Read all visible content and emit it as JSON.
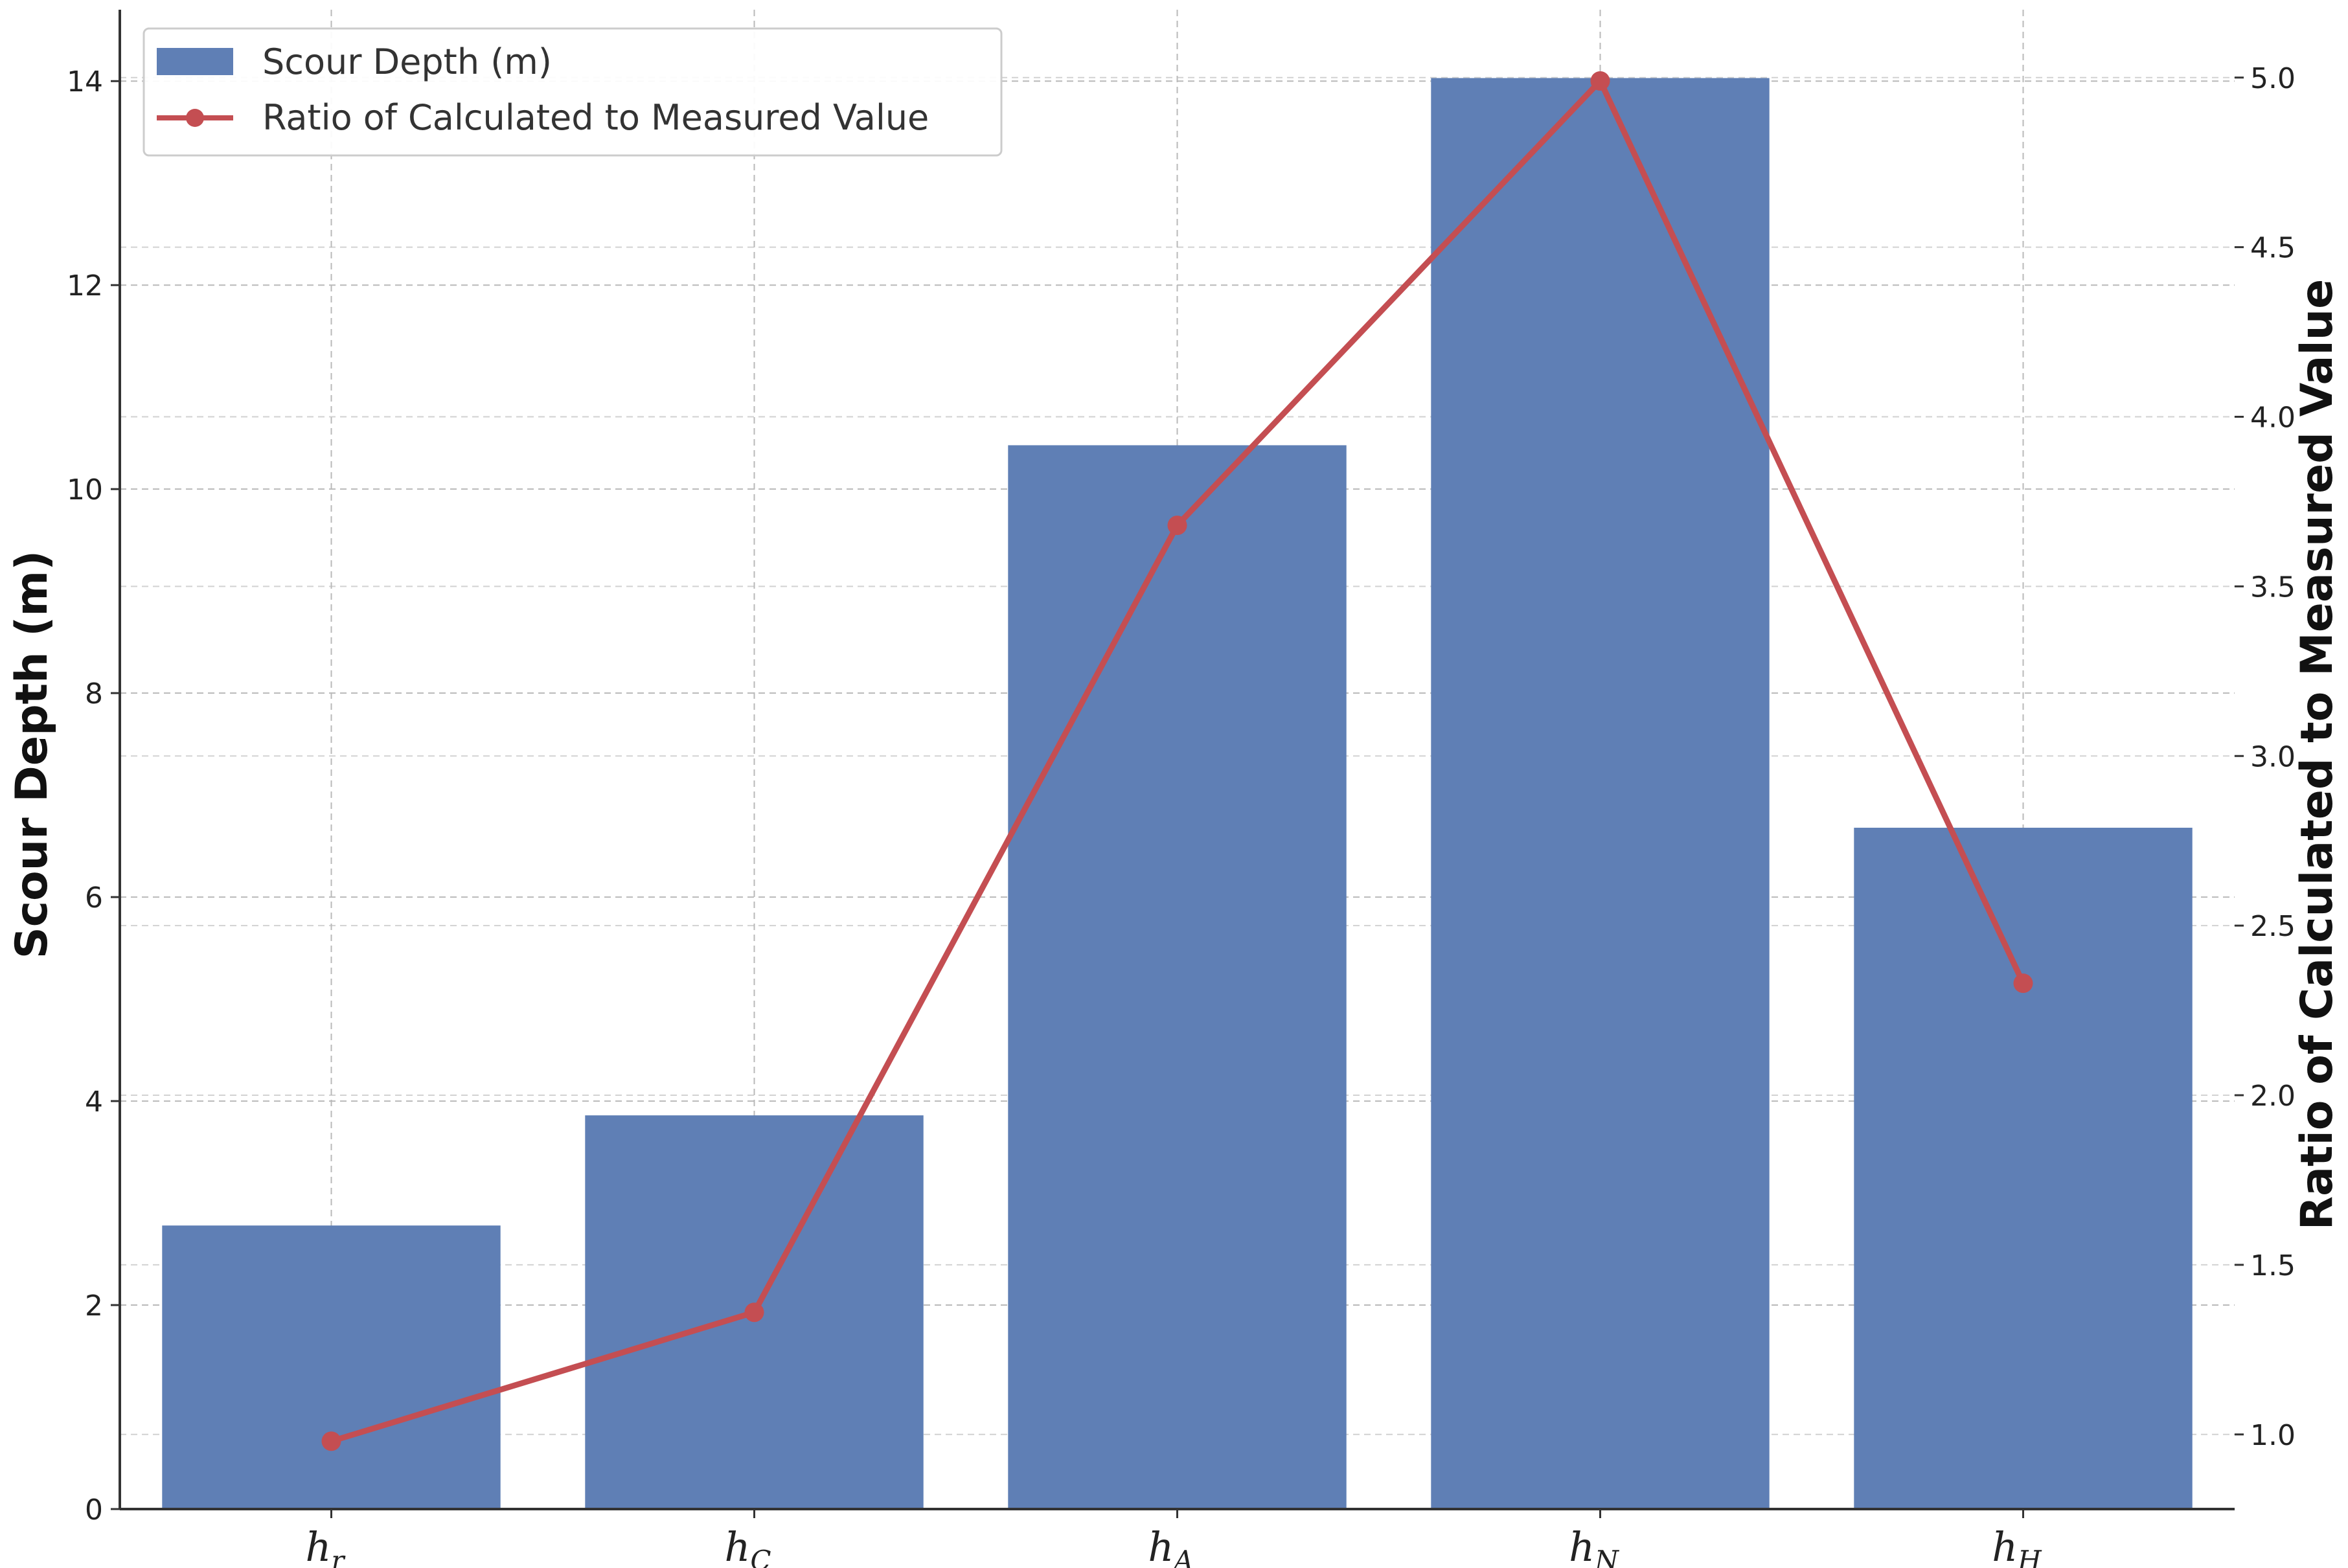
{
  "chart_data": {
    "type": "bar",
    "categories": [
      {
        "base": "h",
        "sub": "r"
      },
      {
        "base": "h",
        "sub": "C"
      },
      {
        "base": "h",
        "sub": "A"
      },
      {
        "base": "h",
        "sub": "N"
      },
      {
        "base": "h",
        "sub": "H"
      }
    ],
    "series": [
      {
        "name": "Scour Depth (m)",
        "type": "bar",
        "axis": "left",
        "color": "#5f7fb5",
        "values": [
          2.78,
          3.86,
          10.43,
          14.03,
          6.68
        ]
      },
      {
        "name": "Ratio of Calculated to Measured Value",
        "type": "line",
        "axis": "right",
        "color": "#c44e52",
        "values": [
          0.98,
          1.36,
          3.68,
          4.99,
          2.33
        ]
      }
    ],
    "ylabel": "Scour Depth (m)",
    "y2label": "Ratio of Calculated to Measured Value",
    "ylim": [
      0,
      14.7
    ],
    "y2lim": [
      0.78,
      5.2
    ],
    "yticks": [
      0,
      2,
      4,
      6,
      8,
      10,
      12,
      14
    ],
    "y2ticks": [
      1.0,
      1.5,
      2.0,
      2.5,
      3.0,
      3.5,
      4.0,
      4.5,
      5.0
    ],
    "ytick_labels": [
      "0",
      "2",
      "4",
      "6",
      "8",
      "10",
      "12",
      "14"
    ],
    "y2tick_labels": [
      "1.0",
      "1.5",
      "2.0",
      "2.5",
      "3.0",
      "3.5",
      "4.0",
      "4.5",
      "5.0"
    ],
    "grid": true,
    "legend": "top-left"
  }
}
